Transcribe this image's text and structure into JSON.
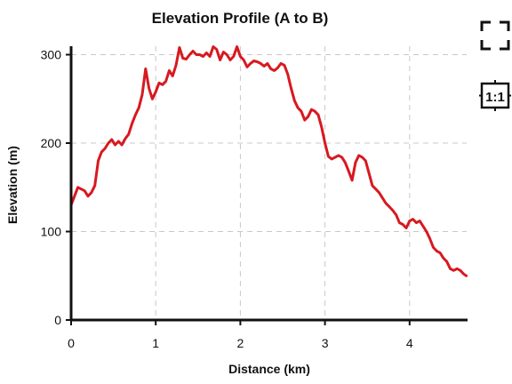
{
  "toolbar": {
    "fullscreen_icon": "fullscreen-icon",
    "one_to_one_label": "1:1"
  },
  "colors": {
    "series": "#d71920",
    "grid": "#c8c8c8",
    "axis": "#111111"
  },
  "chart_data": {
    "type": "line",
    "title": "Elevation Profile (A to B)",
    "xlabel": "Distance (km)",
    "ylabel": "Elevation (m)",
    "xlim": [
      0,
      4.7
    ],
    "ylim": [
      0,
      310
    ],
    "xticks": [
      0,
      1,
      2,
      3,
      4
    ],
    "yticks": [
      0,
      100,
      200,
      300
    ],
    "grid": true,
    "series": [
      {
        "x": [
          0.0,
          0.04,
          0.08,
          0.12,
          0.16,
          0.2,
          0.24,
          0.28,
          0.32,
          0.36,
          0.4,
          0.44,
          0.48,
          0.52,
          0.56,
          0.6,
          0.64,
          0.68,
          0.72,
          0.76,
          0.8,
          0.84,
          0.88,
          0.92,
          0.96,
          1.0,
          1.04,
          1.08,
          1.12,
          1.16,
          1.2,
          1.24,
          1.28,
          1.32,
          1.36,
          1.4,
          1.44,
          1.48,
          1.52,
          1.56,
          1.6,
          1.64,
          1.68,
          1.72,
          1.76,
          1.8,
          1.84,
          1.88,
          1.92,
          1.96,
          2.0,
          2.04,
          2.08,
          2.12,
          2.16,
          2.2,
          2.24,
          2.28,
          2.32,
          2.36,
          2.4,
          2.44,
          2.48,
          2.52,
          2.56,
          2.6,
          2.64,
          2.68,
          2.72,
          2.76,
          2.8,
          2.84,
          2.88,
          2.92,
          2.96,
          3.0,
          3.04,
          3.08,
          3.12,
          3.16,
          3.2,
          3.24,
          3.28,
          3.32,
          3.36,
          3.4,
          3.44,
          3.48,
          3.52,
          3.56,
          3.6,
          3.64,
          3.68,
          3.72,
          3.76,
          3.8,
          3.84,
          3.88,
          3.92,
          3.96,
          4.0,
          4.04,
          4.08,
          4.12,
          4.16,
          4.2,
          4.24,
          4.28,
          4.32,
          4.36,
          4.4,
          4.44,
          4.48,
          4.52,
          4.56,
          4.6,
          4.64,
          4.67
        ],
        "y": [
          130,
          140,
          150,
          148,
          146,
          140,
          144,
          152,
          180,
          190,
          194,
          200,
          204,
          198,
          202,
          198,
          205,
          210,
          222,
          232,
          240,
          255,
          284,
          262,
          250,
          258,
          268,
          266,
          270,
          282,
          276,
          288,
          308,
          296,
          295,
          300,
          304,
          300,
          300,
          298,
          302,
          298,
          309,
          306,
          294,
          303,
          300,
          294,
          298,
          309,
          298,
          294,
          286,
          290,
          293,
          292,
          290,
          287,
          290,
          284,
          282,
          285,
          290,
          288,
          278,
          262,
          248,
          240,
          236,
          226,
          230,
          238,
          236,
          232,
          218,
          200,
          185,
          182,
          184,
          186,
          184,
          178,
          168,
          158,
          178,
          186,
          184,
          180,
          166,
          152,
          148,
          144,
          138,
          132,
          128,
          124,
          119,
          110,
          108,
          104,
          112,
          114,
          110,
          112,
          106,
          100,
          92,
          82,
          78,
          76,
          70,
          66,
          58,
          56,
          58,
          56,
          52,
          50
        ]
      }
    ]
  }
}
